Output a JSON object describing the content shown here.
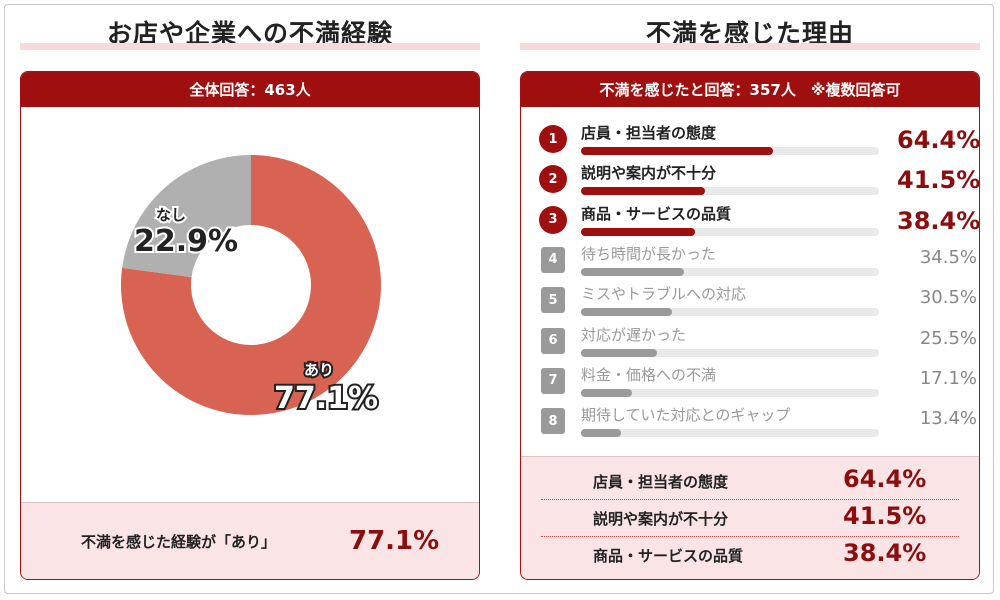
{
  "left": {
    "title": "お店や企業への不満経験",
    "header": "全体回答：463人",
    "footer_label": "不満を感じた経験が「あり」",
    "footer_value": "77.1%"
  },
  "right": {
    "title": "不満を感じた理由",
    "header": "不満を感じたと回答：357人　※複数回答可",
    "summary": [
      {
        "label": "店員・担当者の態度",
        "value": "64.4%"
      },
      {
        "label": "説明や案内が不十分",
        "value": "41.5%"
      },
      {
        "label": "商品・サービスの品質",
        "value": "38.4%"
      }
    ]
  },
  "colors": {
    "brand": "#a00f0f",
    "ari": "#d86352",
    "nashi": "#b0b0b0",
    "gray_bar": "#9a9a9a",
    "pink": "#fbe4e6"
  },
  "chart_data": [
    {
      "type": "pie",
      "labels": [
        "あり",
        "なし"
      ],
      "values": [
        77.1,
        22.9
      ],
      "value_labels": [
        "77.1%",
        "22.9%"
      ]
    },
    {
      "type": "bar",
      "categories": [
        "店員・担当者の態度",
        "説明や案内が不十分",
        "商品・サービスの品質",
        "待ち時間が長かった",
        "ミスやトラブルへの対応",
        "対応が遅かった",
        "料金・価格への不満",
        "期待していた対応とのギャップ"
      ],
      "ranks": [
        "1",
        "2",
        "3",
        "4",
        "5",
        "6",
        "7",
        "8"
      ],
      "values": [
        64.4,
        41.5,
        38.4,
        34.5,
        30.5,
        25.5,
        17.1,
        13.4
      ],
      "value_labels": [
        "64.4%",
        "41.5%",
        "38.4%",
        "34.5%",
        "30.5%",
        "25.5%",
        "17.1%",
        "13.4%"
      ]
    }
  ]
}
